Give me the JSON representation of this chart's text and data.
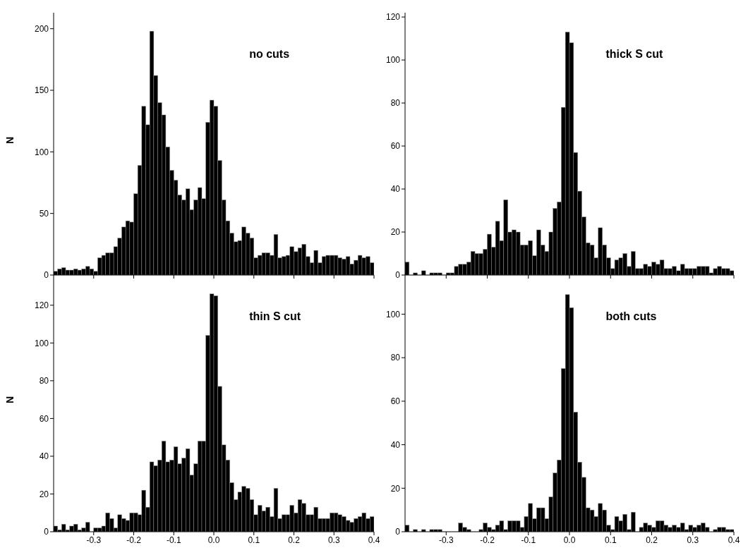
{
  "chart_data": [
    {
      "type": "histogram",
      "ylabel": "N",
      "annotations": [
        "no cuts"
      ],
      "color": "#000000",
      "tick_labels": "y",
      "xlim": [
        -0.4,
        0.4
      ],
      "xticks": [
        -0.3,
        -0.2,
        -0.1,
        0,
        0.1,
        0.2,
        0.3,
        0.4
      ],
      "ylim": [
        0,
        213
      ],
      "yticks": [
        0,
        50,
        100,
        150,
        200
      ],
      "bins": [
        -0.4,
        -0.39,
        -0.38,
        -0.37,
        -0.36,
        -0.35,
        -0.34,
        -0.33,
        -0.32,
        -0.31,
        -0.3,
        -0.29,
        -0.28,
        -0.27,
        -0.26,
        -0.25,
        -0.24,
        -0.23,
        -0.22,
        -0.21,
        -0.2,
        -0.19,
        -0.18,
        -0.17,
        -0.16,
        -0.15,
        -0.14,
        -0.13,
        -0.12,
        -0.11,
        -0.1,
        -0.09,
        -0.08,
        -0.07,
        -0.06,
        -0.05,
        -0.04,
        -0.03,
        -0.02,
        -0.01,
        0,
        0.01,
        0.02,
        0.03,
        0.04,
        0.05,
        0.06,
        0.07,
        0.08,
        0.09,
        0.1,
        0.11,
        0.12,
        0.13,
        0.14,
        0.15,
        0.16,
        0.17,
        0.18,
        0.19,
        0.2,
        0.21,
        0.22,
        0.23,
        0.24,
        0.25,
        0.26,
        0.27,
        0.28,
        0.29,
        0.3,
        0.31,
        0.32,
        0.33,
        0.34,
        0.35,
        0.36,
        0.37,
        0.38,
        0.39,
        0.4
      ],
      "values": [
        3,
        5,
        6,
        4,
        4,
        5,
        4,
        5,
        7,
        5,
        3,
        14,
        16,
        18,
        18,
        23,
        30,
        39,
        44,
        43,
        66,
        89,
        137,
        122,
        198,
        162,
        140,
        130,
        104,
        85,
        77,
        65,
        61,
        70,
        53,
        61,
        71,
        62,
        124,
        142,
        137,
        93,
        61,
        44,
        34,
        27,
        28,
        39,
        34,
        30,
        14,
        16,
        18,
        18,
        16,
        33,
        14,
        15,
        16,
        23,
        19,
        22,
        25,
        15,
        10,
        20,
        10,
        15,
        16,
        16,
        16,
        14,
        13,
        15,
        9,
        12,
        16,
        14,
        15,
        10
      ]
    },
    {
      "type": "histogram",
      "annotations": [
        "thick S cut"
      ],
      "color": "#000000",
      "tick_labels": "y",
      "xlim": [
        -0.4,
        0.4
      ],
      "xticks": [
        -0.3,
        -0.2,
        -0.1,
        0,
        0.1,
        0.2,
        0.3,
        0.4
      ],
      "ylim": [
        0,
        122
      ],
      "yticks": [
        0,
        20,
        40,
        60,
        80,
        100,
        120
      ],
      "bins": [
        -0.4,
        -0.39,
        -0.38,
        -0.37,
        -0.36,
        -0.35,
        -0.34,
        -0.33,
        -0.32,
        -0.31,
        -0.3,
        -0.29,
        -0.28,
        -0.27,
        -0.26,
        -0.25,
        -0.24,
        -0.23,
        -0.22,
        -0.21,
        -0.2,
        -0.19,
        -0.18,
        -0.17,
        -0.16,
        -0.15,
        -0.14,
        -0.13,
        -0.12,
        -0.11,
        -0.1,
        -0.09,
        -0.08,
        -0.07,
        -0.06,
        -0.05,
        -0.04,
        -0.03,
        -0.02,
        -0.01,
        0,
        0.01,
        0.02,
        0.03,
        0.04,
        0.05,
        0.06,
        0.07,
        0.08,
        0.09,
        0.1,
        0.11,
        0.12,
        0.13,
        0.14,
        0.15,
        0.16,
        0.17,
        0.18,
        0.19,
        0.2,
        0.21,
        0.22,
        0.23,
        0.24,
        0.25,
        0.26,
        0.27,
        0.28,
        0.29,
        0.3,
        0.31,
        0.32,
        0.33,
        0.34,
        0.35,
        0.36,
        0.37,
        0.38,
        0.39,
        0.4
      ],
      "values": [
        6,
        0,
        1,
        0,
        2,
        0,
        1,
        1,
        1,
        0,
        1,
        1,
        4,
        5,
        5,
        6,
        11,
        10,
        10,
        12,
        19,
        13,
        25,
        16,
        35,
        20,
        21,
        20,
        14,
        14,
        16,
        9,
        21,
        14,
        11,
        20,
        31,
        34,
        78,
        113,
        108,
        57,
        39,
        27,
        15,
        14,
        8,
        22,
        14,
        8,
        3,
        7,
        8,
        10,
        4,
        11,
        3,
        3,
        5,
        4,
        6,
        5,
        7,
        3,
        3,
        4,
        2,
        5,
        3,
        3,
        3,
        4,
        4,
        4,
        1,
        3,
        4,
        3,
        3,
        2
      ]
    },
    {
      "type": "histogram",
      "ylabel": "N",
      "annotations": [
        "thin S cut"
      ],
      "color": "#000000",
      "xlim": [
        -0.4,
        0.4
      ],
      "xticks": [
        -0.3,
        -0.2,
        -0.1,
        {
          "value": 0,
          "label": "0.0"
        },
        0.1,
        0.2,
        0.3,
        0.4
      ],
      "ylim": [
        0,
        136
      ],
      "yticks": [
        0,
        20,
        40,
        60,
        80,
        100,
        120
      ],
      "bins": [
        -0.4,
        -0.39,
        -0.38,
        -0.37,
        -0.36,
        -0.35,
        -0.34,
        -0.33,
        -0.32,
        -0.31,
        -0.3,
        -0.29,
        -0.28,
        -0.27,
        -0.26,
        -0.25,
        -0.24,
        -0.23,
        -0.22,
        -0.21,
        -0.2,
        -0.19,
        -0.18,
        -0.17,
        -0.16,
        -0.15,
        -0.14,
        -0.13,
        -0.12,
        -0.11,
        -0.1,
        -0.09,
        -0.08,
        -0.07,
        -0.06,
        -0.05,
        -0.04,
        -0.03,
        -0.02,
        -0.01,
        0,
        0.01,
        0.02,
        0.03,
        0.04,
        0.05,
        0.06,
        0.07,
        0.08,
        0.09,
        0.1,
        0.11,
        0.12,
        0.13,
        0.14,
        0.15,
        0.16,
        0.17,
        0.18,
        0.19,
        0.2,
        0.21,
        0.22,
        0.23,
        0.24,
        0.25,
        0.26,
        0.27,
        0.28,
        0.29,
        0.3,
        0.31,
        0.32,
        0.33,
        0.34,
        0.35,
        0.36,
        0.37,
        0.38,
        0.39,
        0.4
      ],
      "values": [
        3,
        1,
        4,
        1,
        3,
        4,
        1,
        2,
        5,
        0,
        2,
        2,
        3,
        10,
        7,
        2,
        9,
        7,
        6,
        10,
        10,
        9,
        22,
        13,
        37,
        35,
        38,
        48,
        37,
        38,
        45,
        36,
        39,
        44,
        30,
        36,
        48,
        48,
        104,
        126,
        125,
        77,
        46,
        38,
        26,
        17,
        21,
        24,
        23,
        17,
        9,
        14,
        11,
        13,
        8,
        23,
        7,
        9,
        9,
        14,
        10,
        17,
        15,
        9,
        9,
        13,
        7,
        7,
        7,
        10,
        10,
        9,
        8,
        6,
        5,
        7,
        8,
        10,
        7,
        8
      ]
    },
    {
      "type": "histogram",
      "annotations": [
        "both cuts"
      ],
      "color": "#000000",
      "xlim": [
        -0.4,
        0.4
      ],
      "xticks": [
        -0.3,
        -0.2,
        -0.1,
        {
          "value": 0,
          "label": "0.0"
        },
        0.1,
        0.2,
        0.3,
        0.4
      ],
      "ylim": [
        0,
        118
      ],
      "yticks": [
        0,
        20,
        40,
        60,
        80,
        100
      ],
      "bins": [
        -0.4,
        -0.39,
        -0.38,
        -0.37,
        -0.36,
        -0.35,
        -0.34,
        -0.33,
        -0.32,
        -0.31,
        -0.3,
        -0.29,
        -0.28,
        -0.27,
        -0.26,
        -0.25,
        -0.24,
        -0.23,
        -0.22,
        -0.21,
        -0.2,
        -0.19,
        -0.18,
        -0.17,
        -0.16,
        -0.15,
        -0.14,
        -0.13,
        -0.12,
        -0.11,
        -0.1,
        -0.09,
        -0.08,
        -0.07,
        -0.06,
        -0.05,
        -0.04,
        -0.03,
        -0.02,
        -0.01,
        0,
        0.01,
        0.02,
        0.03,
        0.04,
        0.05,
        0.06,
        0.07,
        0.08,
        0.09,
        0.1,
        0.11,
        0.12,
        0.13,
        0.14,
        0.15,
        0.16,
        0.17,
        0.18,
        0.19,
        0.2,
        0.21,
        0.22,
        0.23,
        0.24,
        0.25,
        0.26,
        0.27,
        0.28,
        0.29,
        0.3,
        0.31,
        0.32,
        0.33,
        0.34,
        0.35,
        0.36,
        0.37,
        0.38,
        0.39,
        0.4
      ],
      "values": [
        3,
        0,
        1,
        0,
        1,
        0,
        1,
        1,
        1,
        0,
        0,
        0,
        0,
        4,
        2,
        1,
        0,
        0,
        1,
        4,
        2,
        1,
        3,
        5,
        1,
        5,
        5,
        5,
        2,
        7,
        13,
        6,
        11,
        11,
        6,
        16,
        27,
        33,
        75,
        109,
        103,
        55,
        32,
        25,
        11,
        10,
        7,
        13,
        10,
        3,
        1,
        7,
        5,
        8,
        1,
        9,
        0,
        2,
        4,
        3,
        2,
        5,
        5,
        3,
        2,
        3,
        2,
        4,
        1,
        3,
        2,
        3,
        4,
        2,
        0,
        1,
        2,
        2,
        1,
        1
      ]
    }
  ]
}
